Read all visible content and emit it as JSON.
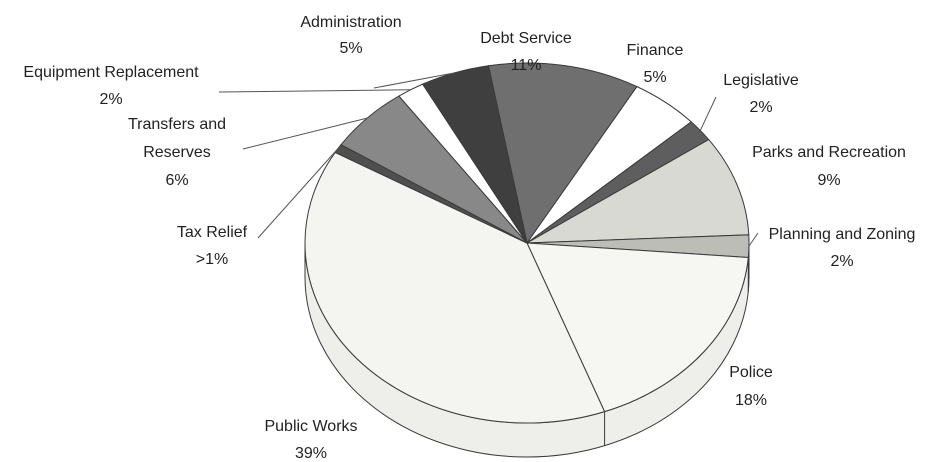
{
  "chart_data": {
    "type": "pie",
    "title": "",
    "slices": [
      {
        "label": "Debt Service",
        "value_text": "11%",
        "value": 11,
        "color": "#6f6f6f"
      },
      {
        "label": "Finance",
        "value_text": "5%",
        "value": 5,
        "color": "#ffffff"
      },
      {
        "label": "Legislative",
        "value_text": "2%",
        "value": 2,
        "color": "#5e5e5e"
      },
      {
        "label": "Parks and Recreation",
        "value_text": "9%",
        "value": 9,
        "color": "#d9d9d4"
      },
      {
        "label": "Planning and Zoning",
        "value_text": "2%",
        "value": 2,
        "color": "#bdbdb8"
      },
      {
        "label": "Police",
        "value_text": "18%",
        "value": 18,
        "color": "#f6f6f3"
      },
      {
        "label": "Public Works",
        "value_text": "39%",
        "value": 39,
        "color": "#f4f4f1"
      },
      {
        "label": "Tax Relief",
        "value_text": ">1%",
        "value": 0.8,
        "color": "#4f4f4f"
      },
      {
        "label": "Transfers and Reserves",
        "value_text": "6%",
        "value": 6,
        "color": "#888888"
      },
      {
        "label": "Equipment Replacement",
        "value_text": "2%",
        "value": 2,
        "color": "#ffffff"
      },
      {
        "label": "Administration",
        "value_text": "5%",
        "value": 5,
        "color": "#3f3f3f"
      }
    ],
    "rim_color": "#eeeeea"
  }
}
